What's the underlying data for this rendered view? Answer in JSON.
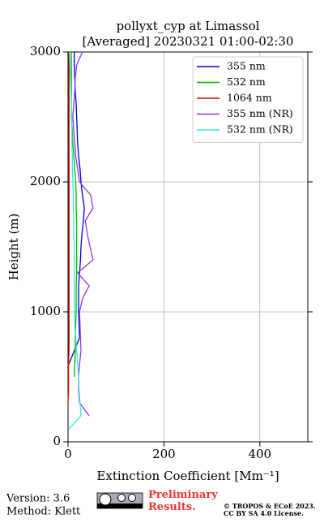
{
  "chart_data": {
    "type": "line",
    "orientation": "profile",
    "title": "pollyxt_cyp at Limassol",
    "subtitle": "[Averaged] 20230321 01:00-02:30",
    "xlabel": "Extinction Coefficient [Mm⁻¹]",
    "ylabel": "Height (m)",
    "y": [
      0,
      100,
      200,
      300,
      400,
      500,
      600,
      700,
      800,
      900,
      1000,
      1100,
      1200,
      1300,
      1400,
      1500,
      1600,
      1700,
      1800,
      1900,
      2000,
      2100,
      2200,
      2300,
      2400,
      2500,
      2600,
      2700,
      2800,
      2900,
      3000
    ],
    "series": [
      {
        "name": "355 nm",
        "color": "#0000dd",
        "values": [
          null,
          null,
          null,
          null,
          null,
          null,
          2,
          13,
          24,
          23,
          22,
          22,
          22,
          24,
          26,
          27,
          29,
          32,
          34,
          30,
          27,
          25,
          22,
          20,
          19,
          18,
          17,
          15,
          14,
          13,
          13
        ]
      },
      {
        "name": "532 nm",
        "color": "#00bb00",
        "values": [
          null,
          null,
          null,
          null,
          null,
          13,
          14,
          15,
          15,
          16,
          17,
          17,
          17,
          18,
          18,
          18,
          18,
          18,
          17,
          17,
          16,
          14,
          12,
          10,
          9,
          7,
          7,
          7,
          7,
          7,
          7
        ]
      },
      {
        "name": "1064 nm",
        "color": "#dd0000",
        "values": [
          null,
          null,
          null,
          0,
          1,
          1,
          1,
          2,
          2,
          2,
          2,
          2,
          2,
          2,
          2,
          2,
          2,
          2,
          2,
          2,
          2,
          2,
          2,
          2,
          2,
          2,
          2,
          2,
          2,
          2,
          2
        ]
      },
      {
        "name": "355 nm (NR)",
        "color": "#9933ee",
        "values": [
          null,
          null,
          44,
          24,
          22,
          22,
          24,
          27,
          26,
          25,
          24,
          30,
          44,
          20,
          52,
          46,
          40,
          36,
          52,
          47,
          24,
          20,
          16,
          14,
          12,
          10,
          12,
          14,
          15,
          18,
          30
        ]
      },
      {
        "name": "532 nm (NR)",
        "color": "#33eedd",
        "values": [
          null,
          2,
          27,
          25,
          23,
          22,
          20,
          18,
          16,
          14,
          13,
          13,
          13,
          13,
          13,
          13,
          12,
          12,
          11,
          11,
          10,
          9,
          9,
          8,
          8,
          8,
          7,
          6,
          5,
          4,
          3
        ]
      }
    ],
    "xlim": [
      0,
      500
    ],
    "xticks": [
      0,
      200,
      400
    ],
    "ylim": [
      0,
      3000
    ],
    "yticks": [
      0,
      1000,
      2000,
      3000
    ],
    "grid": true,
    "legend": "upper right",
    "footer": {
      "version": "Version: 3.6",
      "method": "Method: Klett",
      "notice": "Preliminary Results.",
      "copyright": "© TROPOS & ECoE 2023.",
      "license": "CC BY SA 4.0 License."
    }
  }
}
